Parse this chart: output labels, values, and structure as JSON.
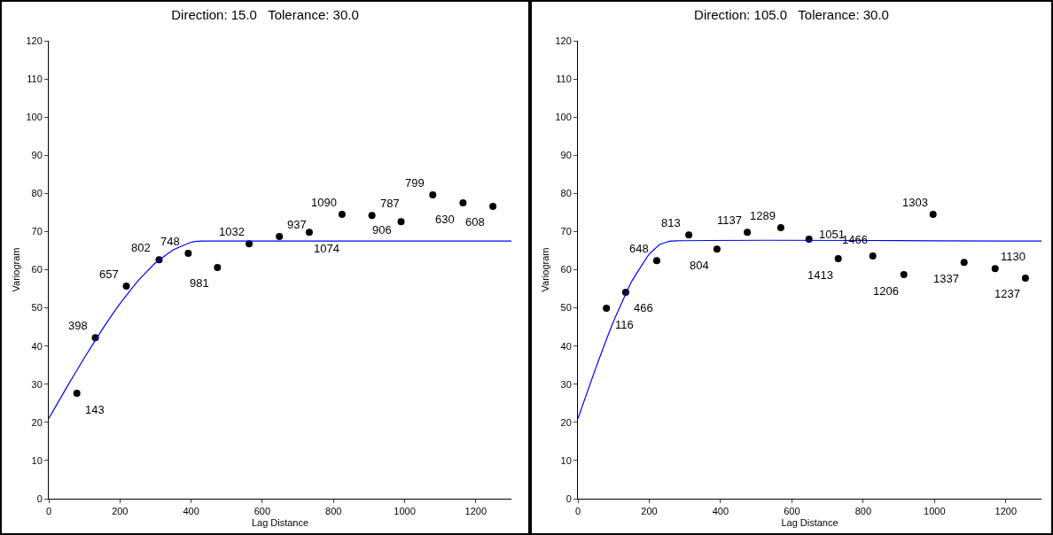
{
  "chart_data": [
    {
      "type": "scatter",
      "title": "Direction: 15.0   Tolerance: 30.0",
      "xlabel": "Lag Distance",
      "ylabel": "Variogram",
      "xlim": [
        0,
        1300
      ],
      "xticks": [
        0,
        200,
        400,
        600,
        800,
        1000,
        1200
      ],
      "ylim": [
        0,
        120
      ],
      "yticks": [
        0,
        10,
        20,
        30,
        40,
        50,
        60,
        70,
        80,
        90,
        100,
        110,
        120
      ],
      "grid": false,
      "series": [
        {
          "marker": "circle",
          "color": "#000000",
          "x": [
            79,
            131,
            218,
            310,
            392,
            474,
            563,
            648,
            732,
            824,
            908,
            990,
            1079,
            1164,
            1248
          ],
          "values": [
            27.6,
            42.2,
            55.7,
            62.6,
            64.3,
            60.6,
            66.8,
            68.7,
            69.8,
            74.5,
            74.2,
            72.6,
            79.6,
            77.5,
            76.6
          ]
        },
        {
          "type": "line",
          "marker": "none",
          "color": "#0000ff",
          "x": [
            0,
            50,
            100,
            150,
            200,
            250,
            300,
            350,
            400,
            430,
            1300
          ],
          "values": [
            21,
            29.1,
            36.9,
            44.3,
            51.1,
            57.0,
            61.8,
            65.2,
            67.2,
            67.5,
            67.5
          ]
        }
      ],
      "annotations": [
        {
          "text": "143",
          "x": 79,
          "y": 27.6
        },
        {
          "text": "398",
          "x": 131,
          "y": 42.2
        },
        {
          "text": "657",
          "x": 218,
          "y": 55.7
        },
        {
          "text": "802",
          "x": 310,
          "y": 62.6
        },
        {
          "text": "748",
          "x": 392,
          "y": 64.3
        },
        {
          "text": "981",
          "x": 474,
          "y": 60.6
        },
        {
          "text": "1032",
          "x": 563,
          "y": 66.8
        },
        {
          "text": "937",
          "x": 648,
          "y": 68.7
        },
        {
          "text": "1074",
          "x": 732,
          "y": 69.8
        },
        {
          "text": "1090",
          "x": 824,
          "y": 74.5
        },
        {
          "text": "787",
          "x": 908,
          "y": 74.2
        },
        {
          "text": "906",
          "x": 990,
          "y": 72.6
        },
        {
          "text": "799",
          "x": 1079,
          "y": 79.6
        },
        {
          "text": "630",
          "x": 1164,
          "y": 77.5
        },
        {
          "text": "608",
          "x": 1248,
          "y": 76.6
        }
      ]
    },
    {
      "type": "scatter",
      "title": "Direction: 105.0   Tolerance: 30.0",
      "xlabel": "Lag Distance",
      "ylabel": "Variogram",
      "xlim": [
        0,
        1300
      ],
      "xticks": [
        0,
        200,
        400,
        600,
        800,
        1000,
        1200
      ],
      "ylim": [
        0,
        120
      ],
      "yticks": [
        0,
        10,
        20,
        30,
        40,
        50,
        60,
        70,
        80,
        90,
        100,
        110,
        120
      ],
      "grid": false,
      "series": [
        {
          "marker": "circle",
          "color": "#000000",
          "x": [
            80,
            134,
            221,
            311,
            390,
            475,
            569,
            648,
            730,
            827,
            914,
            996,
            1083,
            1170,
            1255
          ],
          "values": [
            49.9,
            54.1,
            62.4,
            69.1,
            65.4,
            69.8,
            71.0,
            68.0,
            62.9,
            63.6,
            58.7,
            74.5,
            61.9,
            60.3,
            57.8
          ]
        },
        {
          "type": "line",
          "marker": "none",
          "color": "#0000ff",
          "x": [
            0,
            50,
            100,
            150,
            200,
            230,
            260,
            1300
          ],
          "values": [
            21,
            34.2,
            46.5,
            56.8,
            64.1,
            66.6,
            67.5,
            67.5
          ]
        }
      ],
      "annotations": [
        {
          "text": "116",
          "x": 80,
          "y": 49.9
        },
        {
          "text": "466",
          "x": 134,
          "y": 54.1
        },
        {
          "text": "648",
          "x": 221,
          "y": 62.4
        },
        {
          "text": "813",
          "x": 311,
          "y": 69.1
        },
        {
          "text": "804",
          "x": 390,
          "y": 65.4
        },
        {
          "text": "1137",
          "x": 475,
          "y": 69.8
        },
        {
          "text": "1289",
          "x": 569,
          "y": 71.0
        },
        {
          "text": "1051",
          "x": 648,
          "y": 68.0
        },
        {
          "text": "1413",
          "x": 730,
          "y": 62.9
        },
        {
          "text": "1466",
          "x": 827,
          "y": 63.6
        },
        {
          "text": "1206",
          "x": 914,
          "y": 58.7
        },
        {
          "text": "1303",
          "x": 996,
          "y": 74.5
        },
        {
          "text": "1337",
          "x": 1083,
          "y": 61.9
        },
        {
          "text": "1130",
          "x": 1170,
          "y": 60.3
        },
        {
          "text": "1237",
          "x": 1255,
          "y": 57.8
        }
      ]
    }
  ]
}
